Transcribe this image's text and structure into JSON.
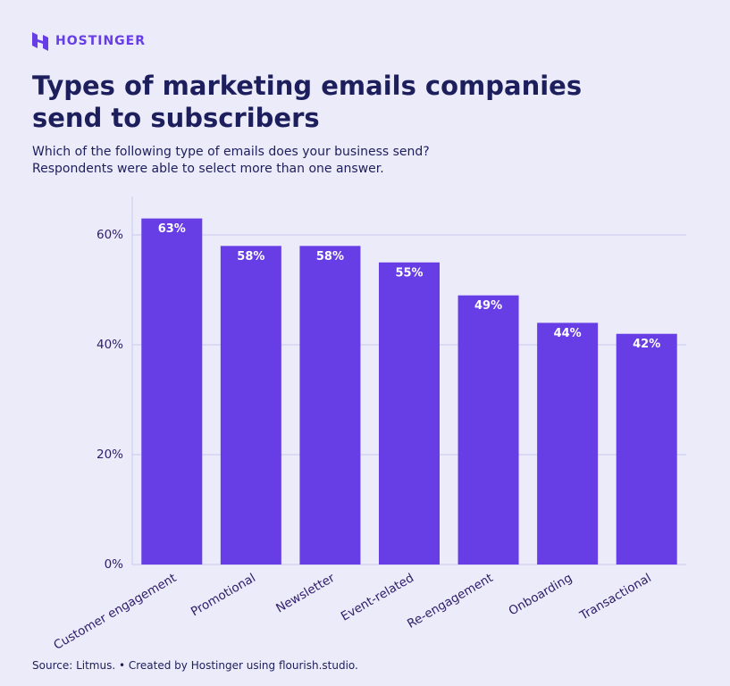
{
  "brand": "HOSTINGER",
  "chart_data": {
    "type": "bar",
    "title": "Types of marketing emails companies send to subscribers",
    "subtitle": [
      "Which of the following type of emails does your business send?",
      "Respondents were able to select more than one answer."
    ],
    "categories": [
      "Customer engagement",
      "Promotional",
      "Newsletter",
      "Event-related",
      "Re-engagement",
      "Onboarding",
      "Transactional"
    ],
    "values": [
      63,
      58,
      58,
      55,
      49,
      44,
      42
    ],
    "value_labels": [
      "63%",
      "58%",
      "58%",
      "55%",
      "49%",
      "44%",
      "42%"
    ],
    "color": "#673de6",
    "ylim": [
      0,
      67
    ],
    "yticks": [
      {
        "value": 0,
        "label": "0%"
      },
      {
        "value": 20,
        "label": "20%"
      },
      {
        "value": 40,
        "label": "40%"
      },
      {
        "value": 60,
        "label": "60%"
      }
    ],
    "grid": true,
    "source": "Source: Litmus. • Created by Hostinger using flourish.studio."
  }
}
